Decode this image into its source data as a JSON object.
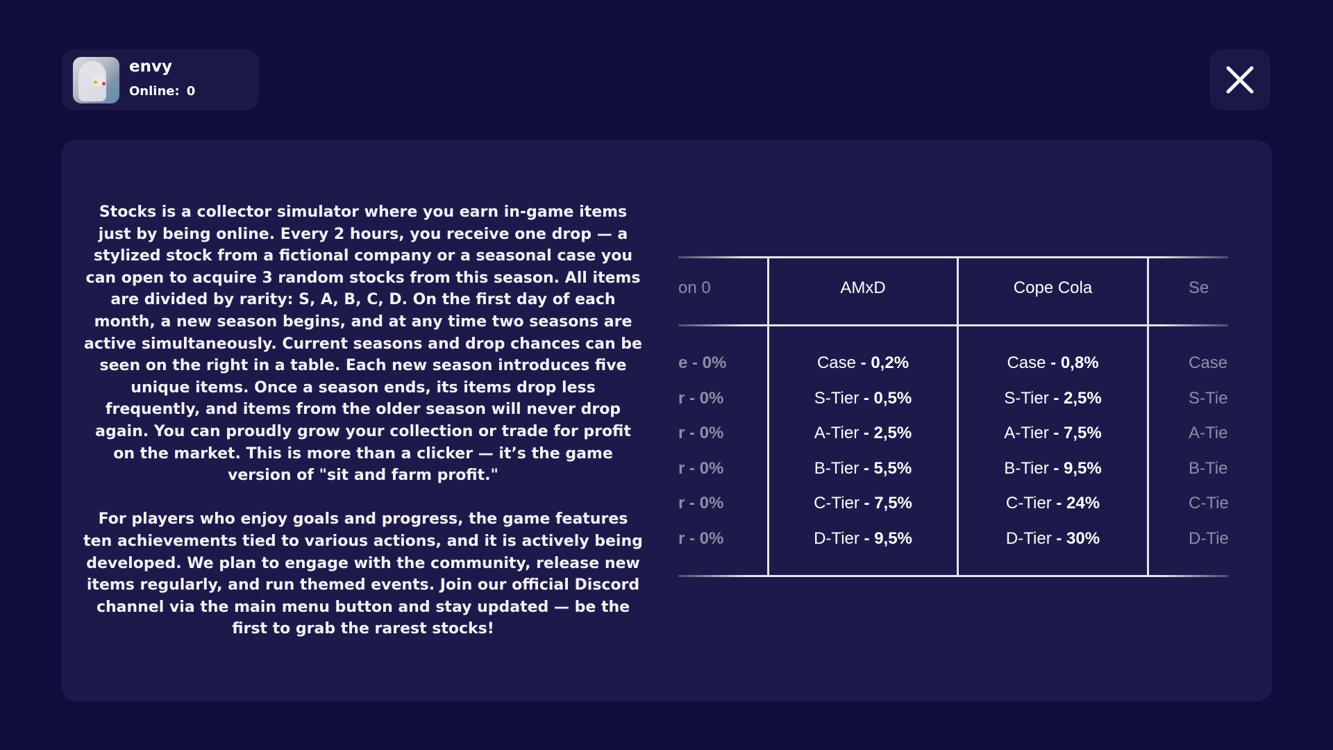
{
  "profile": {
    "name": "envy",
    "online_label": "Online:",
    "online_value": "0"
  },
  "close_icon": "close-x-icon",
  "description": [
    "Stocks is a collector simulator where you earn in-game items just by being online. Every 2 hours, you receive one drop — a stylized stock from a fictional company or a seasonal case you can open to acquire 3 random stocks from this season. All items are divided by rarity: S, A, B, C, D. On the first day of each month, a new season begins, and at any time two seasons are active simultaneously. Current seasons and drop chances can be seen on the right in a table. Each new season introduces five unique items. Once a season ends, its items drop less frequently, and items from the older season will never drop again. You can proudly grow your collection or trade for profit on the market. This is more than a clicker — it’s the game version of \"sit and farm profit.\"",
    "For players who enjoy goals and progress, the game features ten achievements tied to various actions, and it is actively being developed. We plan to engage with the community, release new items regularly, and run themed events. Join our official Discord channel via the main menu button and stay updated — be the first to grab the rarest stocks!"
  ],
  "table": {
    "left_partial": {
      "header": "on 0",
      "cells": [
        "e - 0%",
        "r - 0%",
        "r - 0%",
        "r - 0%",
        "r - 0%",
        "r - 0%"
      ]
    },
    "columns": [
      {
        "header": "AMxD",
        "rows": [
          {
            "label": "Case",
            "value": "0,2%"
          },
          {
            "label": "S-Tier",
            "value": "0,5%"
          },
          {
            "label": "A-Tier",
            "value": "2,5%"
          },
          {
            "label": "B-Tier",
            "value": "5,5%"
          },
          {
            "label": "C-Tier",
            "value": "7,5%"
          },
          {
            "label": "D-Tier",
            "value": "9,5%"
          }
        ]
      },
      {
        "header": "Cope Cola",
        "rows": [
          {
            "label": "Case",
            "value": "0,8%"
          },
          {
            "label": "S-Tier",
            "value": "2,5%"
          },
          {
            "label": "A-Tier",
            "value": "7,5%"
          },
          {
            "label": "B-Tier",
            "value": "9,5%"
          },
          {
            "label": "C-Tier",
            "value": "24%"
          },
          {
            "label": "D-Tier",
            "value": "30%"
          }
        ]
      }
    ],
    "right_partial": {
      "header": "Se",
      "cells": [
        "Case",
        "S-Tie",
        "A-Tie",
        "B-Tie",
        "C-Tie",
        "D-Tie"
      ]
    }
  }
}
